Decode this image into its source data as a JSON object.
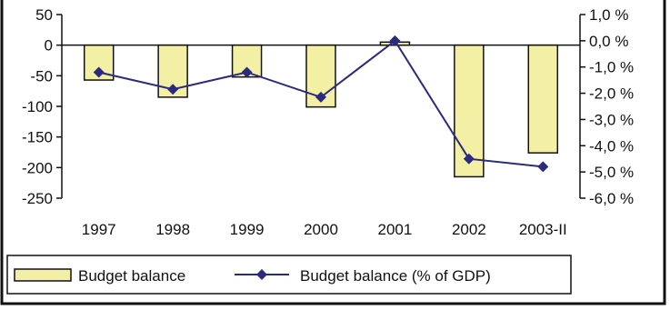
{
  "chart_data": {
    "type": "bar",
    "categories": [
      "1997",
      "1998",
      "1999",
      "2000",
      "2001",
      "2002",
      "2003-II"
    ],
    "series": [
      {
        "name": "Budget balance",
        "kind": "bar",
        "axis": "left",
        "values": [
          -57,
          -85,
          -52,
          -101,
          5,
          -215,
          -176
        ],
        "color": "#f3f0a5"
      },
      {
        "name": "Budget balance (% of GDP)",
        "kind": "line",
        "axis": "right",
        "values": [
          -1.2,
          -1.85,
          -1.2,
          -2.15,
          0.0,
          -4.5,
          -4.8
        ],
        "color": "#2a2a80"
      }
    ],
    "y_left": {
      "ylim": [
        -250,
        50
      ],
      "ticks": [
        50,
        0,
        -50,
        -100,
        -150,
        -200,
        -250
      ],
      "tick_labels": [
        "50",
        "0",
        "-50",
        "-100",
        "-150",
        "-200",
        "-250"
      ]
    },
    "y_right": {
      "ylim": [
        -6,
        1
      ],
      "ticks": [
        1,
        0,
        -1,
        -2,
        -3,
        -4,
        -5,
        -6
      ],
      "tick_labels": [
        "1,0 %",
        "0,0 %",
        "-1,0 %",
        "-2,0 %",
        "-3,0 %",
        "-4,0 %",
        "-5,0 %",
        "-6,0 %"
      ]
    },
    "grid": false,
    "legend_position": "bottom-left"
  }
}
